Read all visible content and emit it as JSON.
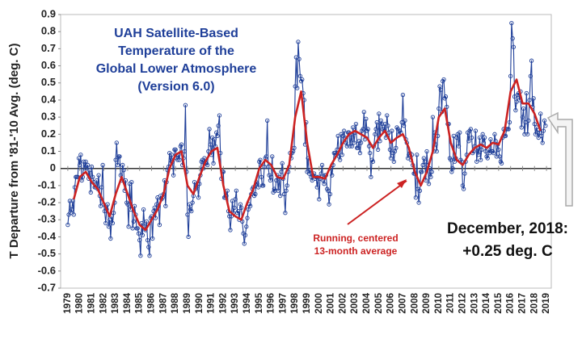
{
  "chart_data": {
    "type": "line",
    "title_lines": [
      "UAH Satellite-Based",
      "Temperature of the",
      "Global Lower Atmosphere",
      "(Version 6.0)"
    ],
    "y_label": "T Departure from '81-'10 Avg. (deg. C)",
    "annotation_lines": [
      "Running, centered",
      "13-month average"
    ],
    "callout_lines": [
      "December, 2018:",
      "+0.25 deg. C"
    ],
    "xlim": [
      1978.4,
      2019.4
    ],
    "xticks": [
      1979,
      1980,
      1981,
      1982,
      1983,
      1984,
      1985,
      1986,
      1987,
      1988,
      1989,
      1990,
      1991,
      1992,
      1993,
      1994,
      1995,
      1996,
      1997,
      1998,
      1999,
      2000,
      2001,
      2002,
      2003,
      2004,
      2005,
      2006,
      2007,
      2008,
      2009,
      2010,
      2011,
      2012,
      2013,
      2014,
      2015,
      2016,
      2017,
      2018,
      2019
    ],
    "ylim": [
      -0.7,
      0.9
    ],
    "yticks": [
      -0.7,
      -0.6,
      -0.5,
      -0.4,
      -0.3,
      -0.2,
      -0.1,
      0,
      0.1,
      0.2,
      0.3,
      0.4,
      0.5,
      0.6,
      0.7,
      0.8,
      0.9
    ],
    "grid": false,
    "x": [
      1979,
      1979.08,
      1979.17,
      1979.25,
      1979.33,
      1979.42,
      1979.5,
      1979.58,
      1979.67,
      1979.75,
      1979.83,
      1979.92,
      1980,
      1980.08,
      1980.17,
      1980.25,
      1980.33,
      1980.42,
      1980.5,
      1980.58,
      1980.67,
      1980.75,
      1980.83,
      1980.92,
      1981,
      1981.08,
      1981.17,
      1981.25,
      1981.33,
      1981.42,
      1981.5,
      1981.58,
      1981.67,
      1981.75,
      1981.83,
      1981.92,
      1982,
      1982.08,
      1982.17,
      1982.25,
      1982.33,
      1982.42,
      1982.5,
      1982.58,
      1982.67,
      1982.75,
      1982.83,
      1982.92,
      1983,
      1983.08,
      1983.17,
      1983.25,
      1983.33,
      1983.42,
      1983.5,
      1983.58,
      1983.67,
      1983.75,
      1983.83,
      1983.92,
      1984,
      1984.08,
      1984.17,
      1984.25,
      1984.33,
      1984.42,
      1984.5,
      1984.58,
      1984.67,
      1984.75,
      1984.83,
      1984.92,
      1985,
      1985.08,
      1985.17,
      1985.25,
      1985.33,
      1985.42,
      1985.5,
      1985.58,
      1985.67,
      1985.75,
      1985.83,
      1985.92,
      1986,
      1986.08,
      1986.17,
      1986.25,
      1986.33,
      1986.42,
      1986.5,
      1986.58,
      1986.67,
      1986.75,
      1986.83,
      1986.92,
      1987,
      1987.08,
      1987.17,
      1987.25,
      1987.33,
      1987.42,
      1987.5,
      1987.58,
      1987.67,
      1987.75,
      1987.83,
      1987.92,
      1988,
      1988.08,
      1988.17,
      1988.25,
      1988.33,
      1988.42,
      1988.5,
      1988.58,
      1988.67,
      1988.75,
      1988.83,
      1988.92,
      1989,
      1989.08,
      1989.17,
      1989.25,
      1989.33,
      1989.42,
      1989.5,
      1989.58,
      1989.67,
      1989.75,
      1989.83,
      1989.92,
      1990,
      1990.08,
      1990.17,
      1990.25,
      1990.33,
      1990.42,
      1990.5,
      1990.58,
      1990.67,
      1990.75,
      1990.83,
      1990.92,
      1991,
      1991.08,
      1991.17,
      1991.25,
      1991.33,
      1991.42,
      1991.5,
      1991.58,
      1991.67,
      1991.75,
      1991.83,
      1991.92,
      1992,
      1992.08,
      1992.17,
      1992.25,
      1992.33,
      1992.42,
      1992.5,
      1992.58,
      1992.67,
      1992.75,
      1992.83,
      1992.92,
      1993,
      1993.08,
      1993.17,
      1993.25,
      1993.33,
      1993.42,
      1993.5,
      1993.58,
      1993.67,
      1993.75,
      1993.83,
      1993.92,
      1994,
      1994.08,
      1994.17,
      1994.25,
      1994.33,
      1994.42,
      1994.5,
      1994.58,
      1994.67,
      1994.75,
      1994.83,
      1994.92,
      1995,
      1995.08,
      1995.17,
      1995.25,
      1995.33,
      1995.42,
      1995.5,
      1995.58,
      1995.67,
      1995.75,
      1995.83,
      1995.92,
      1996,
      1996.08,
      1996.17,
      1996.25,
      1996.33,
      1996.42,
      1996.5,
      1996.58,
      1996.67,
      1996.75,
      1996.83,
      1996.92,
      1997,
      1997.08,
      1997.17,
      1997.25,
      1997.33,
      1997.42,
      1997.5,
      1997.58,
      1997.67,
      1997.75,
      1997.83,
      1997.92,
      1998,
      1998.08,
      1998.17,
      1998.25,
      1998.33,
      1998.42,
      1998.5,
      1998.58,
      1998.67,
      1998.75,
      1998.83,
      1998.92,
      1999,
      1999.08,
      1999.17,
      1999.25,
      1999.33,
      1999.42,
      1999.5,
      1999.58,
      1999.67,
      1999.75,
      1999.83,
      1999.92,
      2000,
      2000.08,
      2000.17,
      2000.25,
      2000.33,
      2000.42,
      2000.5,
      2000.58,
      2000.67,
      2000.75,
      2000.83,
      2000.92,
      2001,
      2001.08,
      2001.17,
      2001.25,
      2001.33,
      2001.42,
      2001.5,
      2001.58,
      2001.67,
      2001.75,
      2001.83,
      2001.92,
      2002,
      2002.08,
      2002.17,
      2002.25,
      2002.33,
      2002.42,
      2002.5,
      2002.58,
      2002.67,
      2002.75,
      2002.83,
      2002.92,
      2003,
      2003.08,
      2003.17,
      2003.25,
      2003.33,
      2003.42,
      2003.5,
      2003.58,
      2003.67,
      2003.75,
      2003.83,
      2003.92,
      2004,
      2004.08,
      2004.17,
      2004.25,
      2004.33,
      2004.42,
      2004.5,
      2004.58,
      2004.67,
      2004.75,
      2004.83,
      2004.92,
      2005,
      2005.08,
      2005.17,
      2005.25,
      2005.33,
      2005.42,
      2005.5,
      2005.58,
      2005.67,
      2005.75,
      2005.83,
      2005.92,
      2006,
      2006.08,
      2006.17,
      2006.25,
      2006.33,
      2006.42,
      2006.5,
      2006.58,
      2006.67,
      2006.75,
      2006.83,
      2006.92,
      2007,
      2007.08,
      2007.17,
      2007.25,
      2007.33,
      2007.42,
      2007.5,
      2007.58,
      2007.67,
      2007.75,
      2007.83,
      2007.92,
      2008,
      2008.08,
      2008.17,
      2008.25,
      2008.33,
      2008.42,
      2008.5,
      2008.58,
      2008.67,
      2008.75,
      2008.83,
      2008.92,
      2009,
      2009.08,
      2009.17,
      2009.25,
      2009.33,
      2009.42,
      2009.5,
      2009.58,
      2009.67,
      2009.75,
      2009.83,
      2009.92,
      2010,
      2010.08,
      2010.17,
      2010.25,
      2010.33,
      2010.42,
      2010.5,
      2010.58,
      2010.67,
      2010.75,
      2010.83,
      2010.92,
      2011,
      2011.08,
      2011.17,
      2011.25,
      2011.33,
      2011.42,
      2011.5,
      2011.58,
      2011.67,
      2011.75,
      2011.83,
      2011.92,
      2012,
      2012.08,
      2012.17,
      2012.25,
      2012.33,
      2012.42,
      2012.5,
      2012.58,
      2012.67,
      2012.75,
      2012.83,
      2012.92,
      2013,
      2013.08,
      2013.17,
      2013.25,
      2013.33,
      2013.42,
      2013.5,
      2013.58,
      2013.67,
      2013.75,
      2013.83,
      2013.92,
      2014,
      2014.08,
      2014.17,
      2014.25,
      2014.33,
      2014.42,
      2014.5,
      2014.58,
      2014.67,
      2014.75,
      2014.83,
      2014.92,
      2015,
      2015.08,
      2015.17,
      2015.25,
      2015.33,
      2015.42,
      2015.5,
      2015.58,
      2015.67,
      2015.75,
      2015.83,
      2015.92,
      2016,
      2016.08,
      2016.17,
      2016.25,
      2016.33,
      2016.42,
      2016.5,
      2016.58,
      2016.67,
      2016.75,
      2016.83,
      2016.92,
      2017,
      2017.08,
      2017.17,
      2017.25,
      2017.33,
      2017.42,
      2017.5,
      2017.58,
      2017.67,
      2017.75,
      2017.83,
      2017.92,
      2018,
      2018.08,
      2018.17,
      2018.25,
      2018.33,
      2018.42,
      2018.5,
      2018.58,
      2018.67,
      2018.75,
      2018.83,
      2018.92
    ],
    "series": [
      {
        "color": "#1f3f99",
        "values": [
          -0.33,
          -0.27,
          -0.19,
          -0.26,
          -0.24,
          -0.19,
          -0.27,
          -0.11,
          -0.05,
          -0.05,
          -0.05,
          0.06,
          0.02,
          0.08,
          -0.07,
          -0.05,
          0.04,
          0,
          0.04,
          0,
          0.02,
          -0.06,
          -0.01,
          -0.14,
          0.01,
          -0.05,
          -0.08,
          -0.11,
          -0.11,
          -0.07,
          -0.12,
          -0.04,
          -0.16,
          -0.22,
          -0.11,
          0.02,
          -0.21,
          -0.25,
          -0.32,
          -0.24,
          -0.21,
          -0.34,
          -0.3,
          -0.41,
          -0.28,
          -0.32,
          -0.26,
          -0.2,
          0.05,
          0.15,
          0.02,
          0.07,
          0.07,
          -0.04,
          -0.07,
          0.02,
          -0.01,
          -0.13,
          -0.07,
          -0.2,
          -0.21,
          -0.34,
          -0.09,
          -0.24,
          -0.08,
          -0.35,
          -0.31,
          -0.22,
          -0.27,
          -0.35,
          -0.35,
          -0.38,
          -0.42,
          -0.51,
          -0.32,
          -0.39,
          -0.24,
          -0.34,
          -0.36,
          -0.31,
          -0.42,
          -0.46,
          -0.51,
          -0.29,
          -0.28,
          -0.41,
          -0.25,
          -0.23,
          -0.29,
          -0.21,
          -0.17,
          -0.22,
          -0.33,
          -0.16,
          -0.18,
          -0.17,
          -0.15,
          -0.07,
          -0.22,
          -0.08,
          -0.01,
          0.01,
          0.09,
          0.03,
          0.08,
          0.04,
          -0.04,
          0.11,
          0.11,
          0.06,
          0.05,
          0.08,
          0.05,
          0.13,
          0.14,
          0.02,
          0.06,
          0.1,
          0.37,
          -0.02,
          -0.27,
          -0.4,
          -0.21,
          -0.24,
          -0.25,
          -0.2,
          -0.16,
          -0.08,
          -0.12,
          -0.11,
          -0.09,
          -0.17,
          -0.09,
          -0.04,
          0.04,
          0.05,
          0,
          0.06,
          0.03,
          0.03,
          0.02,
          0.1,
          0.23,
          0.14,
          0.08,
          0.18,
          0.03,
          0.17,
          0.13,
          0.21,
          0.19,
          0.25,
          0.31,
          0.09,
          -0.06,
          -0.02,
          -0.02,
          -0.17,
          -0.17,
          -0.16,
          -0.13,
          -0.25,
          -0.28,
          -0.36,
          -0.28,
          -0.19,
          -0.26,
          -0.23,
          -0.18,
          -0.13,
          -0.26,
          -0.25,
          -0.3,
          -0.21,
          -0.23,
          -0.31,
          -0.38,
          -0.44,
          -0.39,
          -0.34,
          -0.29,
          -0.24,
          -0.21,
          -0.22,
          -0.15,
          -0.12,
          -0.11,
          -0.16,
          -0.15,
          -0.08,
          -0.09,
          -0.11,
          0.04,
          0.05,
          -0.05,
          -0.1,
          -0.1,
          0.01,
          0.06,
          0.07,
          0.28,
          0.01,
          -0.04,
          -0.07,
          -0.05,
          0.07,
          -0.14,
          -0.12,
          -0.13,
          -0.07,
          -0.04,
          -0.13,
          -0.05,
          -0.16,
          -0.02,
          0.03,
          -0.06,
          -0.15,
          -0.26,
          -0.13,
          -0.1,
          -0.02,
          0.01,
          0.09,
          0.06,
          0.09,
          0.1,
          0.12,
          0.48,
          0.65,
          0.47,
          0.74,
          0.64,
          0.54,
          0.51,
          0.52,
          0.44,
          0.4,
          0.14,
          0.27,
          -0.02,
          0.06,
          -0.03,
          -0.01,
          -0.05,
          -0.07,
          -0.04,
          -0.03,
          -0.06,
          -0.05,
          -0.11,
          -0.05,
          -0.18,
          -0.06,
          -0.03,
          0.02,
          -0.07,
          -0.09,
          -0.04,
          -0.04,
          -0.12,
          -0.13,
          -0.21,
          -0.15,
          0,
          -0.04,
          0.02,
          0.09,
          0.09,
          0.08,
          0.11,
          0.19,
          0.07,
          0.05,
          0.2,
          0.08,
          0.19,
          0.22,
          0.18,
          0.15,
          0.13,
          0.21,
          0.21,
          0.13,
          0.2,
          0.13,
          0.24,
          0.15,
          0.21,
          0.26,
          0.12,
          0.12,
          0.16,
          0.09,
          0.15,
          0.22,
          0.23,
          0.33,
          0.17,
          0.29,
          0.22,
          0.23,
          0.13,
          0.09,
          -0.05,
          0.05,
          0.04,
          0.13,
          0.2,
          0.23,
          0.27,
          0.11,
          0.32,
          0.16,
          0.28,
          0.26,
          0.23,
          0.22,
          0.26,
          0.18,
          0.31,
          0.25,
          0.21,
          0.11,
          0.06,
          0.22,
          0.09,
          0.04,
          0.1,
          0.12,
          0.24,
          0.23,
          0.2,
          0.22,
          0.21,
          0.27,
          0.43,
          0.25,
          0.28,
          0.17,
          0.15,
          0.06,
          0.08,
          0.09,
          0.05,
          0.08,
          0.02,
          -0.03,
          -0.03,
          -0.17,
          0.08,
          -0.12,
          -0.2,
          -0.13,
          -0.02,
          -0.02,
          0.02,
          0.06,
          0.04,
          -0.07,
          0.1,
          0.02,
          -0.09,
          0,
          -0.05,
          -0.02,
          0.3,
          0.1,
          0.21,
          0.14,
          0.1,
          0.19,
          0.35,
          0.48,
          0.46,
          0.33,
          0.51,
          0.52,
          0.41,
          0.42,
          0.36,
          0.26,
          0.26,
          0.06,
          0.05,
          -0.02,
          0,
          0.19,
          0.04,
          0.06,
          0.18,
          0.2,
          0.13,
          0.21,
          0.05,
          0.04,
          -0.1,
          -0.12,
          -0.03,
          0.04,
          0.08,
          0.21,
          0.16,
          0.22,
          0.23,
          0.18,
          0.09,
          0.1,
          0.13,
          0.22,
          0.04,
          0.12,
          0.08,
          0.18,
          0.05,
          0.11,
          0.2,
          0.15,
          0.18,
          0.1,
          0.07,
          0.06,
          0.11,
          0.09,
          0.17,
          0.1,
          0.1,
          0.09,
          0.2,
          0.16,
          0.07,
          0.14,
          0.11,
          0.07,
          0.04,
          0.03,
          0.18,
          0.23,
          0.19,
          0.19,
          0.23,
          0.23,
          0.23,
          0.27,
          0.54,
          0.85,
          0.76,
          0.71,
          0.42,
          0.34,
          0.39,
          0.43,
          0.44,
          0.4,
          0.45,
          0.24,
          0.3,
          0.35,
          0.2,
          0.27,
          0.44,
          0.2,
          0.28,
          0.4,
          0.54,
          0.63,
          0.36,
          0.41,
          0.26,
          0.2,
          0.24,
          0.21,
          0.18,
          0.21,
          0.32,
          0.19,
          0.15,
          0.22,
          0.28,
          0.25
        ]
      },
      {
        "color": "#cc2222",
        "x": [
          1979.5,
          1980,
          1980.5,
          1981,
          1981.5,
          1982,
          1982.5,
          1983,
          1983.5,
          1984,
          1984.5,
          1985,
          1985.5,
          1986,
          1986.5,
          1987,
          1987.5,
          1988,
          1988.5,
          1989,
          1989.5,
          1990,
          1990.5,
          1991,
          1991.5,
          1992,
          1992.5,
          1993,
          1993.5,
          1994,
          1994.5,
          1995,
          1995.5,
          1996,
          1996.5,
          1997,
          1997.5,
          1998,
          1998.5,
          1999,
          1999.5,
          2000,
          2000.5,
          2001,
          2001.5,
          2002,
          2002.5,
          2003,
          2003.5,
          2004,
          2004.5,
          2005,
          2005.5,
          2006,
          2006.5,
          2007,
          2007.5,
          2008,
          2008.5,
          2009,
          2009.5,
          2010,
          2010.5,
          2011,
          2011.5,
          2012,
          2012.5,
          2013,
          2013.5,
          2014,
          2014.5,
          2015,
          2015.5,
          2016,
          2016.5,
          2017,
          2017.5,
          2018,
          2018.5
        ],
        "values": [
          -0.18,
          -0.05,
          -0.02,
          -0.08,
          -0.12,
          -0.2,
          -0.28,
          -0.15,
          -0.05,
          -0.15,
          -0.25,
          -0.33,
          -0.36,
          -0.3,
          -0.24,
          -0.15,
          0,
          0.08,
          0.1,
          -0.1,
          -0.15,
          -0.05,
          0.04,
          0.1,
          0.12,
          -0.1,
          -0.25,
          -0.28,
          -0.3,
          -0.2,
          -0.12,
          0,
          0.05,
          0.02,
          -0.05,
          -0.06,
          0.02,
          0.3,
          0.45,
          0.15,
          -0.05,
          -0.05,
          -0.06,
          0.02,
          0.08,
          0.15,
          0.2,
          0.22,
          0.2,
          0.18,
          0.12,
          0.18,
          0.22,
          0.15,
          0.18,
          0.2,
          0.12,
          -0.02,
          -0.1,
          -0.02,
          0.1,
          0.3,
          0.35,
          0.15,
          0.05,
          0.02,
          0.08,
          0.12,
          0.14,
          0.12,
          0.15,
          0.14,
          0.22,
          0.45,
          0.52,
          0.38,
          0.38,
          0.32,
          0.22
        ]
      }
    ]
  }
}
